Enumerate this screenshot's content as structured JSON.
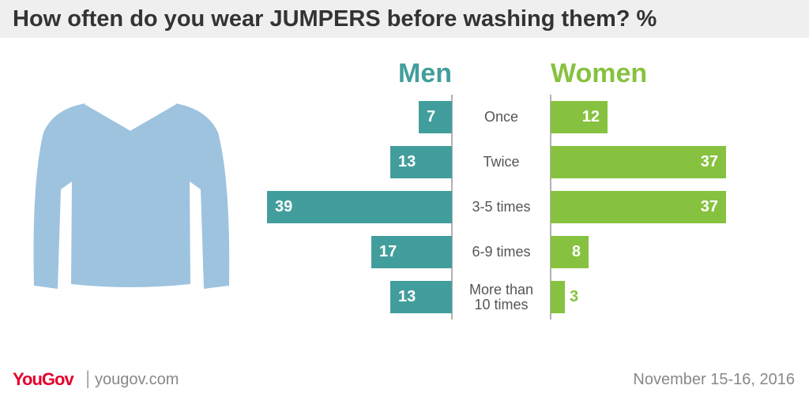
{
  "chart_data": {
    "type": "bar",
    "title": "How often do you wear JUMPERS before washing them? %",
    "categories": [
      "Once",
      "Twice",
      "3-5 times",
      "6-9 times",
      "More than 10 times"
    ],
    "series": [
      {
        "name": "Men",
        "color": "#429e9c",
        "values": [
          7,
          13,
          39,
          17,
          13
        ]
      },
      {
        "name": "Women",
        "color": "#86c23f",
        "values": [
          12,
          37,
          37,
          8,
          3
        ]
      }
    ]
  },
  "footer": {
    "brand": "YouGov",
    "site": "yougov.com",
    "date": "November 15-16, 2016"
  }
}
